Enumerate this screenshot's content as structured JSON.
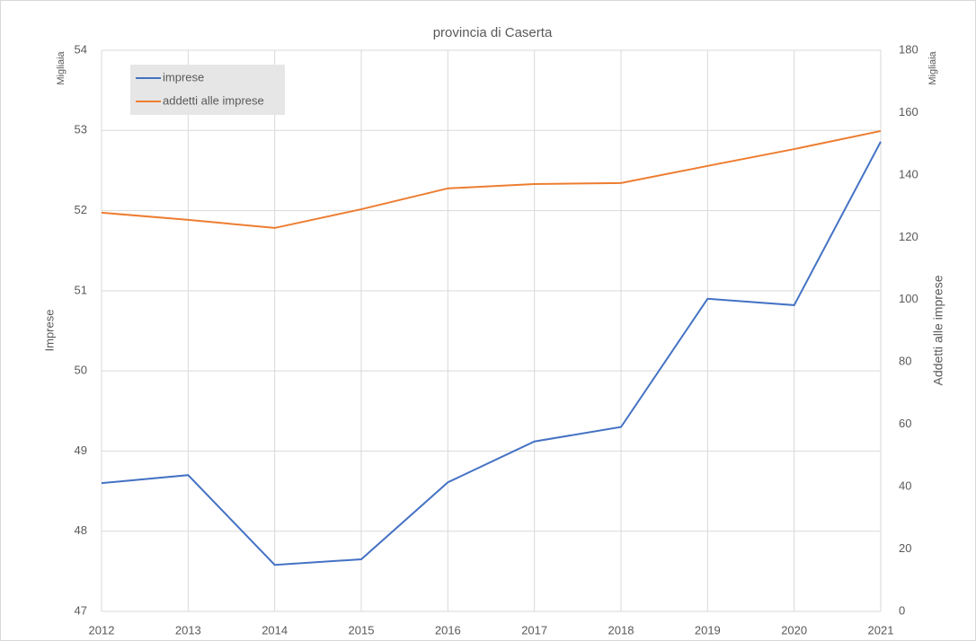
{
  "chart_data": {
    "type": "line",
    "title": "provincia di Caserta",
    "categories": [
      "2012",
      "2013",
      "2014",
      "2015",
      "2016",
      "2017",
      "2018",
      "2019",
      "2020",
      "2021"
    ],
    "series": [
      {
        "name": "imprese",
        "color": "#4472c4",
        "values": [
          48.6,
          48.7,
          47.58,
          47.65,
          48.61,
          49.12,
          49.3,
          50.9,
          50.82,
          52.86
        ]
      },
      {
        "name": "addetti alle imprese",
        "color": "#ed7d31",
        "axis": "y2",
        "values": [
          127.9,
          125.6,
          123.0,
          129.0,
          135.7,
          137.1,
          137.4,
          142.9,
          148.3,
          154.1
        ]
      }
    ],
    "ylabel": "Imprese",
    "y_unit": "Migliaia",
    "y2label": "Addetti alle imprese",
    "y2_unit": "Migliaia",
    "ylim": [
      47,
      54
    ],
    "yticks": [
      47,
      48,
      49,
      50,
      51,
      52,
      53,
      54
    ],
    "y2lim": [
      0,
      180
    ],
    "y2ticks": [
      0,
      20,
      40,
      60,
      80,
      100,
      120,
      140,
      160,
      180
    ],
    "grid": true,
    "legend": "upper left"
  }
}
